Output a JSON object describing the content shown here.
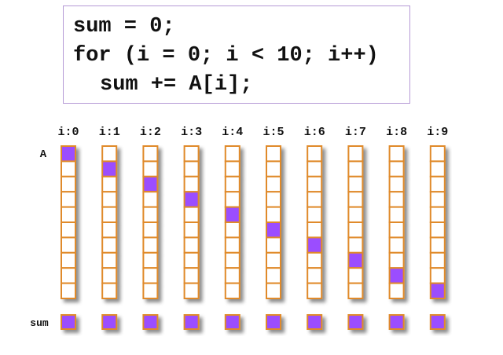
{
  "code": {
    "lines": [
      "sum = 0;",
      "for (i = 0; i < 10; i++)",
      "sum += A[i];"
    ]
  },
  "array_label": "A",
  "sum_label": "sum",
  "iteration_labels": [
    "i:0",
    "i:1",
    "i:2",
    "i:3",
    "i:4",
    "i:5",
    "i:6",
    "i:7",
    "i:8",
    "i:9"
  ],
  "array_length": 10,
  "highlighted_index_per_iteration": [
    0,
    1,
    2,
    3,
    4,
    5,
    6,
    7,
    8,
    9
  ],
  "colors": {
    "cell_border": "#e08a2c",
    "highlight_fill": "#9b4dff",
    "cell_fill": "#ffffff",
    "code_border": "#b59ad6"
  }
}
